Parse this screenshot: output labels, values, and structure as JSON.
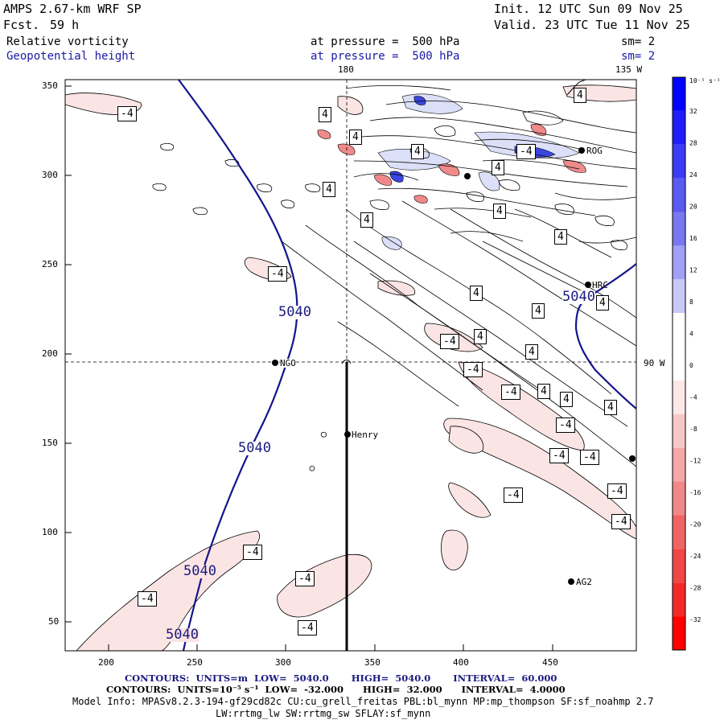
{
  "header": {
    "model": "AMPS 2.67-km WRF SP",
    "fcst_label": "Fcst.",
    "fcst_value": "59 h",
    "init": "Init. 12 UTC Sun 09 Nov 25",
    "valid": "Valid. 23 UTC Tue 11 Nov 25",
    "field1": "Relative vorticity",
    "field1_level": "at pressure =  500 hPa",
    "field1_sm": "sm= 2",
    "field2": "Geopotential height",
    "field2_level": "at pressure =  500 hPa",
    "field2_sm": "sm= 2"
  },
  "map": {
    "lon_label_top_180": "180",
    "lon_label_top_135w": "135 W",
    "lon_label_right_90w": "90 W",
    "x_ticks": [
      "200",
      "250",
      "300",
      "350",
      "400",
      "450"
    ],
    "y_ticks": [
      "350",
      "300",
      "250",
      "200",
      "150",
      "100",
      "50"
    ],
    "stations": [
      "NGO",
      "Henry",
      "AG2",
      "HRC",
      "ROG"
    ],
    "height_labels": [
      "5040",
      "5040",
      "5040",
      "5040",
      "5040"
    ],
    "vort_pos_labels": [
      "4",
      "4",
      "4",
      "4",
      "4",
      "4",
      "4",
      "4",
      "4",
      "4",
      "4",
      "4",
      "4",
      "4",
      "4",
      "4",
      "4"
    ],
    "vort_neg_labels": [
      "-4",
      "-4",
      "-4",
      "-4",
      "-4",
      "-4",
      "-4",
      "-4",
      "-4",
      "-4",
      "-4",
      "-4",
      "-4",
      "-4",
      "-4",
      "-4"
    ]
  },
  "colorbar": {
    "top_label": "10⁻⁵ s⁻¹",
    "labels": [
      "32",
      "28",
      "24",
      "20",
      "16",
      "12",
      "8",
      "4",
      "0",
      "-4",
      "-8",
      "-12",
      "-16",
      "-20",
      "-24",
      "-28",
      "-32"
    ],
    "colors": [
      "#0000ff",
      "#1e1efa",
      "#3c3cf5",
      "#5a5af0",
      "#7878f0",
      "#a0a0f5",
      "#c8c8fa",
      "#ffffff",
      "#ffffff",
      "#fde8e8",
      "#f8c8c8",
      "#f4a8a8",
      "#f08888",
      "#f06464",
      "#f04646",
      "#f52828",
      "#ff0000"
    ]
  },
  "footer": {
    "contours1": "CONTOURS:  UNITS=m  LOW=  5040.0       HIGH=  5040.0       INTERVAL=  60.000",
    "contours2": "CONTOURS:  UNITS=10⁻⁵ s⁻¹  LOW=  -32.000      HIGH=  32.000      INTERVAL=  4.0000",
    "model_info": "Model Info: MPASv8.2.3-194-gf29cd82c CU:cu_grell_freitas PBL:bl_mynn MP:mp_thompson SF:sf_noahmp 2.7",
    "model_info2": "LW:rrtmg_lw SW:rrtmg_sw SFLAY:sf_mynn"
  }
}
